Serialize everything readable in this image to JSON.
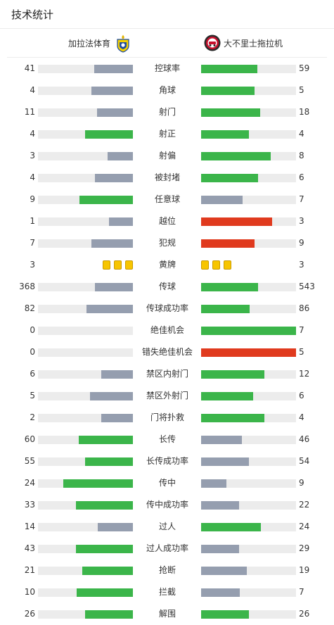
{
  "header": {
    "title": "技术统计"
  },
  "teams": {
    "home": {
      "name": "加拉法体育",
      "logo": "al-gharafa-logo"
    },
    "away": {
      "name": "大不里士拖拉机",
      "logo": "tractor-fc-logo"
    }
  },
  "colors": {
    "green": "#3bb54a",
    "gray": "#959eaf",
    "red": "#e03a1e",
    "track": "#ececec",
    "yellow": "#f7c500"
  },
  "stats": [
    {
      "label": "控球率",
      "home": 41,
      "away": 59,
      "home_color": "gray",
      "away_color": "green",
      "home_share": 0.41,
      "away_share": 0.59
    },
    {
      "label": "角球",
      "home": 4,
      "away": 5,
      "home_color": "gray",
      "away_color": "green",
      "home_share": 0.44,
      "away_share": 0.56
    },
    {
      "label": "射门",
      "home": 11,
      "away": 18,
      "home_color": "gray",
      "away_color": "green",
      "home_share": 0.38,
      "away_share": 0.62
    },
    {
      "label": "射正",
      "home": 4,
      "away": 4,
      "home_color": "green",
      "away_color": "green",
      "home_share": 0.5,
      "away_share": 0.5
    },
    {
      "label": "射偏",
      "home": 3,
      "away": 8,
      "home_color": "gray",
      "away_color": "green",
      "home_share": 0.27,
      "away_share": 0.73
    },
    {
      "label": "被封堵",
      "home": 4,
      "away": 6,
      "home_color": "gray",
      "away_color": "green",
      "home_share": 0.4,
      "away_share": 0.6
    },
    {
      "label": "任意球",
      "home": 9,
      "away": 7,
      "home_color": "green",
      "away_color": "gray",
      "home_share": 0.56,
      "away_share": 0.44
    },
    {
      "label": "越位",
      "home": 1,
      "away": 3,
      "home_color": "gray",
      "away_color": "red",
      "home_share": 0.25,
      "away_share": 0.75
    },
    {
      "label": "犯规",
      "home": 7,
      "away": 9,
      "home_color": "gray",
      "away_color": "red",
      "home_share": 0.44,
      "away_share": 0.56
    },
    {
      "label": "黄牌",
      "home": 3,
      "away": 3,
      "type": "cards"
    },
    {
      "label": "传球",
      "home": 368,
      "away": 543,
      "home_color": "gray",
      "away_color": "green",
      "home_share": 0.4,
      "away_share": 0.6
    },
    {
      "label": "传球成功率",
      "home": 82,
      "away": 86,
      "home_color": "gray",
      "away_color": "green",
      "home_share": 0.49,
      "away_share": 0.51
    },
    {
      "label": "绝佳机会",
      "home": 0,
      "away": 7,
      "home_color": "gray",
      "away_color": "green",
      "home_share": 0,
      "away_share": 1
    },
    {
      "label": "错失绝佳机会",
      "home": 0,
      "away": 5,
      "home_color": "gray",
      "away_color": "red",
      "home_share": 0,
      "away_share": 1
    },
    {
      "label": "禁区内射门",
      "home": 6,
      "away": 12,
      "home_color": "gray",
      "away_color": "green",
      "home_share": 0.33,
      "away_share": 0.67
    },
    {
      "label": "禁区外射门",
      "home": 5,
      "away": 6,
      "home_color": "gray",
      "away_color": "green",
      "home_share": 0.45,
      "away_share": 0.55
    },
    {
      "label": "门将扑救",
      "home": 2,
      "away": 4,
      "home_color": "gray",
      "away_color": "green",
      "home_share": 0.33,
      "away_share": 0.67
    },
    {
      "label": "长传",
      "home": 60,
      "away": 46,
      "home_color": "green",
      "away_color": "gray",
      "home_share": 0.57,
      "away_share": 0.43
    },
    {
      "label": "长传成功率",
      "home": 55,
      "away": 54,
      "home_color": "green",
      "away_color": "gray",
      "home_share": 0.5,
      "away_share": 0.5
    },
    {
      "label": "传中",
      "home": 24,
      "away": 9,
      "home_color": "green",
      "away_color": "gray",
      "home_share": 0.73,
      "away_share": 0.27
    },
    {
      "label": "传中成功率",
      "home": 33,
      "away": 22,
      "home_color": "green",
      "away_color": "gray",
      "home_share": 0.6,
      "away_share": 0.4
    },
    {
      "label": "过人",
      "home": 14,
      "away": 24,
      "home_color": "gray",
      "away_color": "green",
      "home_share": 0.37,
      "away_share": 0.63
    },
    {
      "label": "过人成功率",
      "home": 43,
      "away": 29,
      "home_color": "green",
      "away_color": "gray",
      "home_share": 0.6,
      "away_share": 0.4
    },
    {
      "label": "抢断",
      "home": 21,
      "away": 19,
      "home_color": "green",
      "away_color": "gray",
      "home_share": 0.53,
      "away_share": 0.48
    },
    {
      "label": "拦截",
      "home": 10,
      "away": 7,
      "home_color": "green",
      "away_color": "gray",
      "home_share": 0.59,
      "away_share": 0.41
    },
    {
      "label": "解围",
      "home": 26,
      "away": 26,
      "home_color": "green",
      "away_color": "green",
      "home_share": 0.5,
      "away_share": 0.5
    }
  ]
}
